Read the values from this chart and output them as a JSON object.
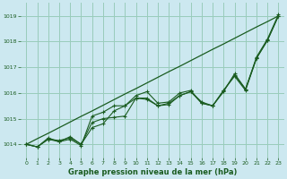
{
  "title": "Graphe pression niveau de la mer (hPa)",
  "bg_color": "#cce8f0",
  "grid_color": "#99ccbb",
  "line_color": "#1a5c20",
  "xlim": [
    -0.5,
    23.5
  ],
  "ylim": [
    1013.5,
    1019.5
  ],
  "yticks": [
    1014,
    1015,
    1016,
    1017,
    1018,
    1019
  ],
  "xticks": [
    0,
    1,
    2,
    3,
    4,
    5,
    6,
    7,
    8,
    9,
    10,
    11,
    12,
    13,
    14,
    15,
    16,
    17,
    18,
    19,
    20,
    21,
    22,
    23
  ],
  "series_smooth": [
    1014.0,
    1014.22,
    1014.43,
    1014.65,
    1014.87,
    1015.09,
    1015.3,
    1015.52,
    1015.74,
    1015.96,
    1016.17,
    1016.39,
    1016.61,
    1016.83,
    1017.04,
    1017.26,
    1017.48,
    1017.7,
    1017.91,
    1018.13,
    1018.35,
    1018.57,
    1018.78,
    1019.0
  ],
  "series1": [
    1014.0,
    1013.9,
    1014.2,
    1014.15,
    1014.25,
    1014.0,
    1014.85,
    1015.0,
    1015.05,
    1015.1,
    1015.8,
    1015.8,
    1015.5,
    1015.55,
    1015.9,
    1016.05,
    1015.6,
    1015.5,
    1016.1,
    1016.65,
    1016.1,
    1017.35,
    1018.05,
    1019.0
  ],
  "series2": [
    1014.0,
    1013.9,
    1014.2,
    1014.1,
    1014.2,
    1013.95,
    1015.1,
    1015.25,
    1015.5,
    1015.5,
    1015.8,
    1015.75,
    1015.5,
    1015.6,
    1015.9,
    1016.05,
    1015.65,
    1015.5,
    1016.1,
    1016.7,
    1016.15,
    1017.35,
    1018.05,
    1019.0
  ],
  "series3": [
    1014.0,
    1013.9,
    1014.25,
    1014.1,
    1014.3,
    1014.0,
    1014.65,
    1014.8,
    1015.3,
    1015.5,
    1015.9,
    1016.05,
    1015.6,
    1015.65,
    1016.0,
    1016.1,
    1015.6,
    1015.5,
    1016.05,
    1016.75,
    1016.15,
    1017.4,
    1018.1,
    1019.05
  ]
}
